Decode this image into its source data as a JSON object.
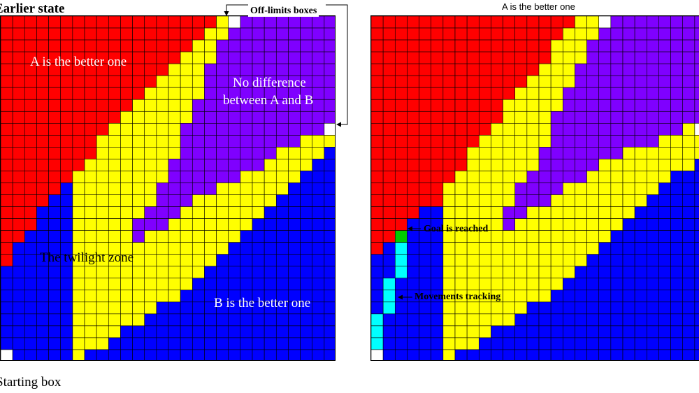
{
  "left_panel": {
    "title": "Earlier state",
    "bottom_label": "Starting box",
    "offlimits_label": "Off-limits boxes",
    "zone_a": "A is the better one",
    "zone_none_line1": "No difference",
    "zone_none_line2": "between A and B",
    "zone_twilight": "The twilight zone",
    "zone_b": "B is the better one"
  },
  "right_panel": {
    "title": "A is the better one",
    "goal_label": "Goal is reached",
    "movements_label": "Movements tracking"
  },
  "colors": {
    "zone_a": "#ff0000",
    "zone_none": "#7f00ff",
    "zone_twilight": "#ffff00",
    "zone_b": "#0000ff",
    "off_limits": "#ffffff",
    "goal": "#00cc00",
    "movement": "#00ffff",
    "grid_line": "#000000"
  }
}
